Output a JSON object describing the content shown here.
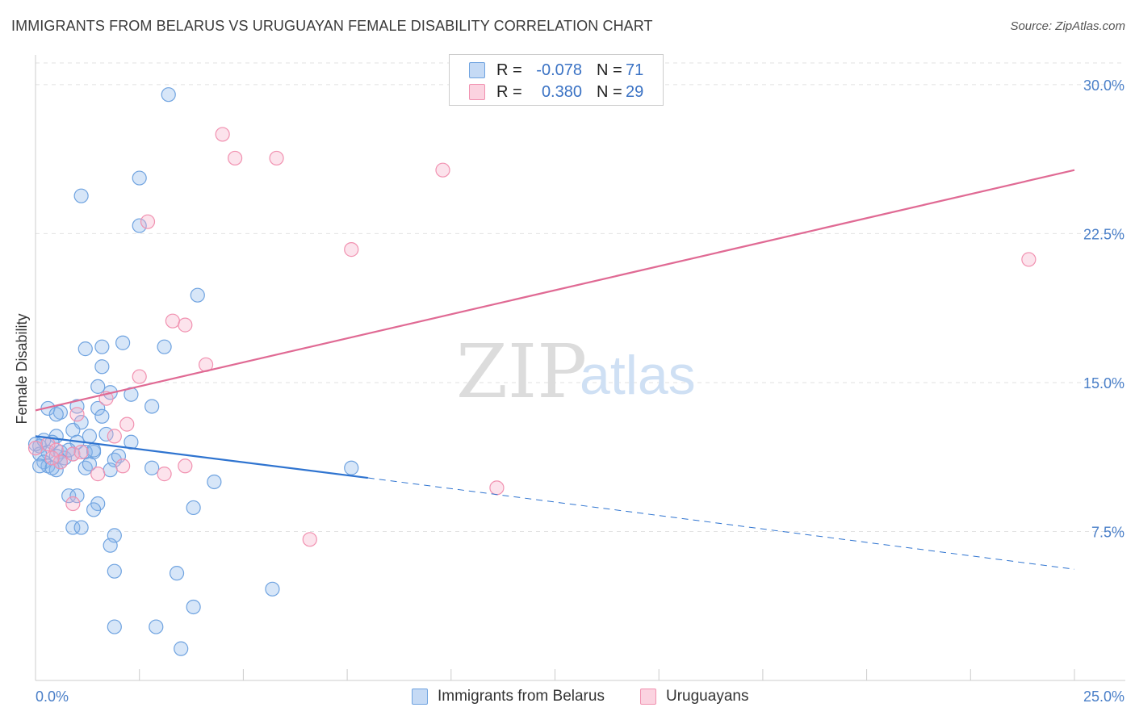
{
  "title": "IMMIGRANTS FROM BELARUS VS URUGUAYAN FEMALE DISABILITY CORRELATION CHART",
  "source": "Source: ZipAtlas.com",
  "watermark": {
    "zip": "ZIP",
    "atlas": "atlas"
  },
  "legend": {
    "rows": [
      {
        "r_label": "R =",
        "r_value": "-0.078",
        "n_label": "N =",
        "n_value": "71",
        "color": "#6fa3e0"
      },
      {
        "r_label": "R =",
        "r_value": "0.380",
        "n_label": "N =",
        "n_value": "29",
        "color": "#f191b0"
      }
    ]
  },
  "bottom_legend": [
    "Immigrants from Belarus",
    "Uruguayans"
  ],
  "chart_data": {
    "type": "scatter",
    "title": "IMMIGRANTS FROM BELARUS VS URUGUAYAN FEMALE DISABILITY CORRELATION CHART",
    "xlabel": "",
    "ylabel": "Female Disability",
    "xlim": [
      0,
      25
    ],
    "ylim": [
      0,
      31.5
    ],
    "x_tick_labels": [
      "0.0%",
      "25.0%"
    ],
    "y_ticks": [
      7.5,
      15.0,
      22.5,
      30.0
    ],
    "y_tick_labels": [
      "7.5%",
      "15.0%",
      "22.5%",
      "30.0%"
    ],
    "grid": true,
    "legend_position": "top-center",
    "series": [
      {
        "name": "Immigrants from Belarus",
        "color": "#6fa3e0",
        "trend": {
          "x0": 0.0,
          "y0": 12.3,
          "x1": 8.0,
          "y1": 10.2,
          "dashed_to_x": 25.0,
          "dashed_to_y": 5.6
        },
        "points": [
          [
            3.2,
            29.5
          ],
          [
            2.5,
            25.3
          ],
          [
            1.1,
            24.4
          ],
          [
            2.5,
            22.9
          ],
          [
            3.9,
            19.4
          ],
          [
            2.1,
            17.0
          ],
          [
            1.6,
            16.8
          ],
          [
            3.1,
            16.8
          ],
          [
            1.2,
            16.7
          ],
          [
            1.6,
            15.8
          ],
          [
            1.5,
            14.8
          ],
          [
            1.8,
            14.5
          ],
          [
            2.3,
            14.4
          ],
          [
            0.3,
            13.7
          ],
          [
            1.0,
            13.8
          ],
          [
            1.5,
            13.7
          ],
          [
            2.8,
            13.8
          ],
          [
            0.6,
            13.5
          ],
          [
            0.5,
            13.4
          ],
          [
            1.6,
            13.3
          ],
          [
            1.1,
            13.0
          ],
          [
            0.9,
            12.6
          ],
          [
            1.7,
            12.4
          ],
          [
            1.3,
            12.3
          ],
          [
            0.5,
            12.3
          ],
          [
            0.4,
            12.0
          ],
          [
            1.0,
            12.0
          ],
          [
            2.3,
            12.0
          ],
          [
            0.1,
            11.8
          ],
          [
            0.3,
            11.5
          ],
          [
            0.6,
            11.5
          ],
          [
            0.9,
            11.4
          ],
          [
            1.4,
            11.5
          ],
          [
            0.1,
            11.4
          ],
          [
            0.7,
            11.2
          ],
          [
            1.2,
            11.5
          ],
          [
            0.5,
            11.3
          ],
          [
            1.4,
            11.6
          ],
          [
            1.9,
            11.1
          ],
          [
            0.2,
            11.0
          ],
          [
            0.3,
            10.8
          ],
          [
            0.5,
            10.6
          ],
          [
            0.1,
            10.8
          ],
          [
            1.2,
            10.7
          ],
          [
            1.8,
            10.6
          ],
          [
            2.8,
            10.7
          ],
          [
            7.6,
            10.7
          ],
          [
            4.3,
            10.0
          ],
          [
            0.8,
            9.3
          ],
          [
            1.0,
            9.3
          ],
          [
            1.5,
            8.9
          ],
          [
            3.8,
            8.7
          ],
          [
            1.4,
            8.6
          ],
          [
            0.9,
            7.7
          ],
          [
            1.1,
            7.7
          ],
          [
            1.9,
            7.3
          ],
          [
            1.8,
            6.8
          ],
          [
            1.9,
            5.5
          ],
          [
            3.4,
            5.4
          ],
          [
            5.7,
            4.6
          ],
          [
            3.8,
            3.7
          ],
          [
            1.9,
            2.7
          ],
          [
            2.9,
            2.7
          ],
          [
            3.5,
            1.6
          ],
          [
            0.0,
            11.9
          ],
          [
            0.2,
            12.1
          ],
          [
            0.6,
            11.0
          ],
          [
            1.3,
            10.9
          ],
          [
            2.0,
            11.3
          ],
          [
            0.4,
            10.7
          ],
          [
            0.8,
            11.6
          ]
        ]
      },
      {
        "name": "Uruguayans",
        "color": "#f191b0",
        "trend": {
          "x0": 0.0,
          "y0": 13.6,
          "x1": 25.0,
          "y1": 25.7
        },
        "points": [
          [
            4.5,
            27.5
          ],
          [
            4.8,
            26.3
          ],
          [
            5.8,
            26.3
          ],
          [
            9.8,
            25.7
          ],
          [
            2.7,
            23.1
          ],
          [
            7.6,
            21.7
          ],
          [
            23.9,
            21.2
          ],
          [
            3.3,
            18.1
          ],
          [
            3.6,
            17.9
          ],
          [
            4.1,
            15.9
          ],
          [
            2.5,
            15.3
          ],
          [
            1.7,
            14.2
          ],
          [
            1.0,
            13.4
          ],
          [
            2.2,
            12.9
          ],
          [
            1.9,
            12.3
          ],
          [
            0.3,
            11.9
          ],
          [
            0.5,
            11.6
          ],
          [
            0.9,
            11.4
          ],
          [
            1.1,
            11.5
          ],
          [
            0.6,
            11.0
          ],
          [
            2.1,
            10.8
          ],
          [
            3.6,
            10.8
          ],
          [
            3.1,
            10.4
          ],
          [
            1.5,
            10.4
          ],
          [
            11.1,
            9.7
          ],
          [
            0.9,
            8.9
          ],
          [
            6.6,
            7.1
          ],
          [
            0.0,
            11.7
          ],
          [
            0.4,
            11.2
          ]
        ]
      }
    ]
  }
}
